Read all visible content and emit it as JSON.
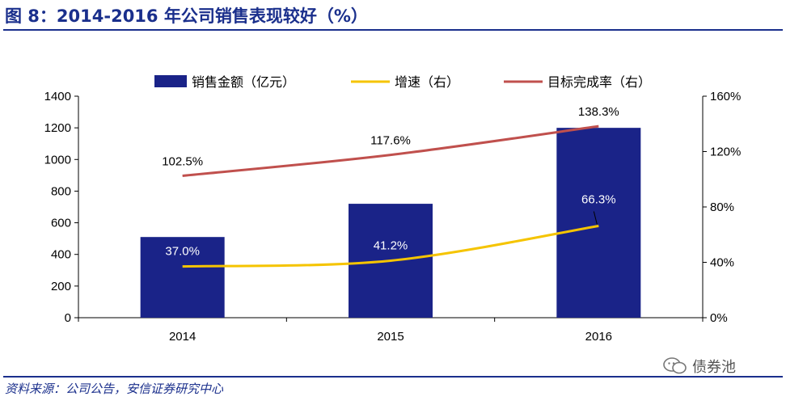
{
  "title": "图 8：2014-2016 年公司销售表现较好（%）",
  "source": "资料来源：公司公告，安信证券研究中心",
  "watermark": "债券池",
  "colors": {
    "bar": "#1a2388",
    "growth": "#f5c400",
    "target": "#c0504d",
    "accent": "#1a2f8c"
  },
  "chart_data": {
    "type": "bar",
    "categories": [
      "2014",
      "2015",
      "2016"
    ],
    "series": [
      {
        "name": "销售金额（亿元）",
        "type": "bar",
        "axis": "left",
        "values": [
          510,
          720,
          1200
        ]
      },
      {
        "name": "增速（右）",
        "type": "line",
        "axis": "right",
        "values": [
          37.0,
          41.2,
          66.3
        ],
        "labels": [
          "37.0%",
          "41.2%",
          "66.3%"
        ]
      },
      {
        "name": "目标完成率（右）",
        "type": "line",
        "axis": "right",
        "values": [
          102.5,
          117.6,
          138.3
        ],
        "labels": [
          "102.5%",
          "117.6%",
          "138.3%"
        ]
      }
    ],
    "left_axis": {
      "min": 0,
      "max": 1400,
      "ticks": [
        "0",
        "200",
        "400",
        "600",
        "800",
        "1000",
        "1200",
        "1400"
      ]
    },
    "right_axis": {
      "min": 0,
      "max": 160,
      "ticks": [
        "0%",
        "40%",
        "80%",
        "120%",
        "160%"
      ]
    },
    "legend_position": "top"
  }
}
